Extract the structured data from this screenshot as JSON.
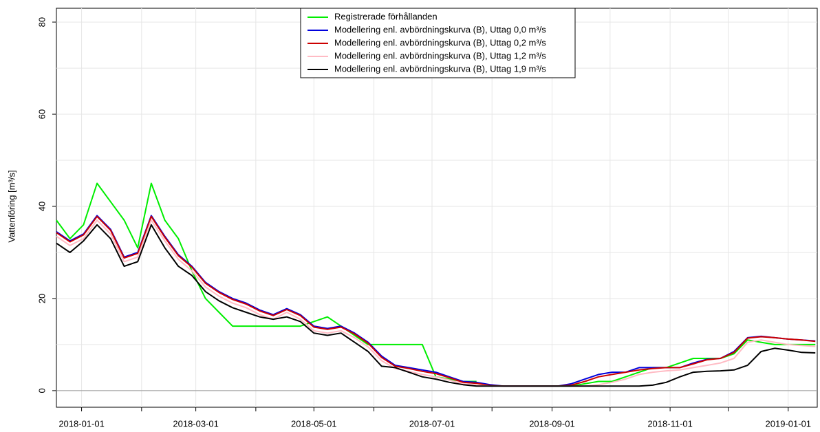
{
  "chart_data": {
    "type": "line",
    "ylabel": "Vattenföring [m³/s]",
    "xlim": [
      "2017-12-19",
      "2019-01-16"
    ],
    "ylim": [
      -3.6,
      83
    ],
    "xticks": [
      "2018-01-01",
      "2018-03-01",
      "2018-05-01",
      "2018-07-01",
      "2018-09-01",
      "2018-11-01",
      "2019-01-01"
    ],
    "xminor_ticks": [
      "2018-02-01",
      "2018-04-01",
      "2018-06-01",
      "2018-08-01",
      "2018-10-01",
      "2018-12-01"
    ],
    "yticks": [
      0,
      20,
      40,
      60,
      80
    ],
    "ygrid": [
      0,
      10,
      20,
      30,
      40,
      50,
      60,
      70,
      80
    ],
    "grid": true,
    "hline": 0,
    "legend": "top",
    "x": [
      "2017-12-19",
      "2017-12-26",
      "2018-01-02",
      "2018-01-09",
      "2018-01-16",
      "2018-01-23",
      "2018-01-30",
      "2018-02-06",
      "2018-02-13",
      "2018-02-20",
      "2018-02-27",
      "2018-03-06",
      "2018-03-13",
      "2018-03-20",
      "2018-03-27",
      "2018-04-03",
      "2018-04-10",
      "2018-04-17",
      "2018-04-24",
      "2018-05-01",
      "2018-05-08",
      "2018-05-15",
      "2018-05-22",
      "2018-05-29",
      "2018-06-05",
      "2018-06-12",
      "2018-06-19",
      "2018-06-26",
      "2018-07-03",
      "2018-07-10",
      "2018-07-17",
      "2018-07-24",
      "2018-07-31",
      "2018-08-07",
      "2018-08-14",
      "2018-08-21",
      "2018-08-28",
      "2018-09-04",
      "2018-09-11",
      "2018-09-18",
      "2018-09-25",
      "2018-10-02",
      "2018-10-09",
      "2018-10-16",
      "2018-10-23",
      "2018-10-30",
      "2018-11-06",
      "2018-11-13",
      "2018-11-20",
      "2018-11-27",
      "2018-12-04",
      "2018-12-11",
      "2018-12-18",
      "2018-12-25",
      "2019-01-01",
      "2019-01-08",
      "2019-01-15"
    ],
    "series": [
      {
        "name": "Registrerade förhållanden",
        "color": "#00ee00",
        "values": [
          37,
          33,
          36,
          45,
          41,
          37,
          31,
          45,
          37,
          33,
          26,
          20,
          17,
          14,
          14,
          14,
          14,
          14,
          14,
          15,
          16,
          14,
          12,
          10,
          10,
          10,
          10,
          10,
          3,
          2.5,
          2,
          2,
          null,
          null,
          null,
          1,
          1,
          1,
          1,
          1.5,
          2,
          2,
          3,
          4,
          5,
          5,
          6,
          7,
          7,
          7,
          8,
          11,
          10.5,
          10,
          10,
          10,
          10
        ]
      },
      {
        "name": "Modellering enl. avbördningskurva (B), Uttag 0,0 m³/s",
        "color": "#0000dd",
        "values": [
          34.5,
          32.5,
          34,
          38,
          35,
          29,
          30,
          38,
          33.5,
          29.5,
          27,
          23.5,
          21.5,
          20,
          19,
          17.5,
          16.5,
          17.8,
          16.5,
          14,
          13.5,
          14,
          12.5,
          10.5,
          7.5,
          5.5,
          5,
          4.5,
          4,
          3,
          2,
          1.8,
          1.3,
          1,
          1,
          1,
          1,
          1,
          1.5,
          2.5,
          3.5,
          4,
          4,
          5,
          5,
          5,
          5,
          6,
          6.8,
          7,
          8.5,
          11.5,
          11.8,
          11.5,
          11.2,
          11,
          10.8
        ]
      },
      {
        "name": "Modellering enl. avbördningskurva (B), Uttag 0,2 m³/s",
        "color": "#cc0000",
        "values": [
          34.3,
          32.3,
          33.8,
          37.8,
          34.8,
          28.8,
          29.8,
          37.8,
          33.3,
          29.3,
          26.8,
          23.3,
          21.3,
          19.8,
          18.8,
          17.3,
          16.3,
          17.6,
          16.3,
          13.8,
          13.3,
          13.8,
          12.3,
          10.3,
          7.2,
          5.3,
          4.8,
          4.2,
          3.7,
          2.8,
          1.8,
          1.6,
          1.1,
          1,
          1,
          1,
          1,
          1,
          1.2,
          2,
          3,
          3.5,
          4,
          4.5,
          4.8,
          5,
          5,
          5.8,
          6.7,
          7,
          8.3,
          11.4,
          11.7,
          11.5,
          11.2,
          11,
          10.7
        ]
      },
      {
        "name": "Modellering enl. avbördningskurva (B), Uttag 1,2 m³/s",
        "color": "#ffbbc4",
        "values": [
          33.5,
          31.5,
          33,
          37,
          34,
          28,
          29,
          37,
          32.5,
          28.5,
          26,
          22.5,
          20.5,
          19,
          18,
          16.5,
          15.5,
          17,
          15.5,
          13,
          12.5,
          13,
          11.5,
          9.5,
          6.5,
          4.8,
          4.2,
          3.5,
          3,
          2.3,
          1.5,
          1.2,
          1,
          1,
          1,
          1,
          1,
          1,
          1,
          1,
          1.3,
          1.8,
          2.5,
          3.5,
          4,
          4.3,
          4.5,
          5,
          5.5,
          6,
          7,
          10.5,
          11,
          10.5,
          10,
          9.8,
          9.6
        ]
      },
      {
        "name": "Modellering enl. avbördningskurva (B), Uttag 1,9 m³/s",
        "color": "#000000",
        "values": [
          32,
          30,
          32.5,
          36,
          33,
          27,
          28,
          36,
          31,
          27,
          25,
          21.5,
          19.5,
          18,
          17,
          16,
          15.5,
          16,
          15,
          12.5,
          12,
          12.5,
          10.5,
          8.5,
          5.3,
          5,
          4,
          3,
          2.5,
          1.8,
          1.3,
          1,
          1,
          1,
          1,
          1,
          1,
          1,
          1,
          1,
          1,
          1,
          1,
          1,
          1.2,
          1.8,
          3,
          4,
          4.2,
          4.3,
          4.5,
          5.5,
          8.5,
          9.2,
          8.8,
          8.3,
          8.2
        ]
      }
    ]
  }
}
